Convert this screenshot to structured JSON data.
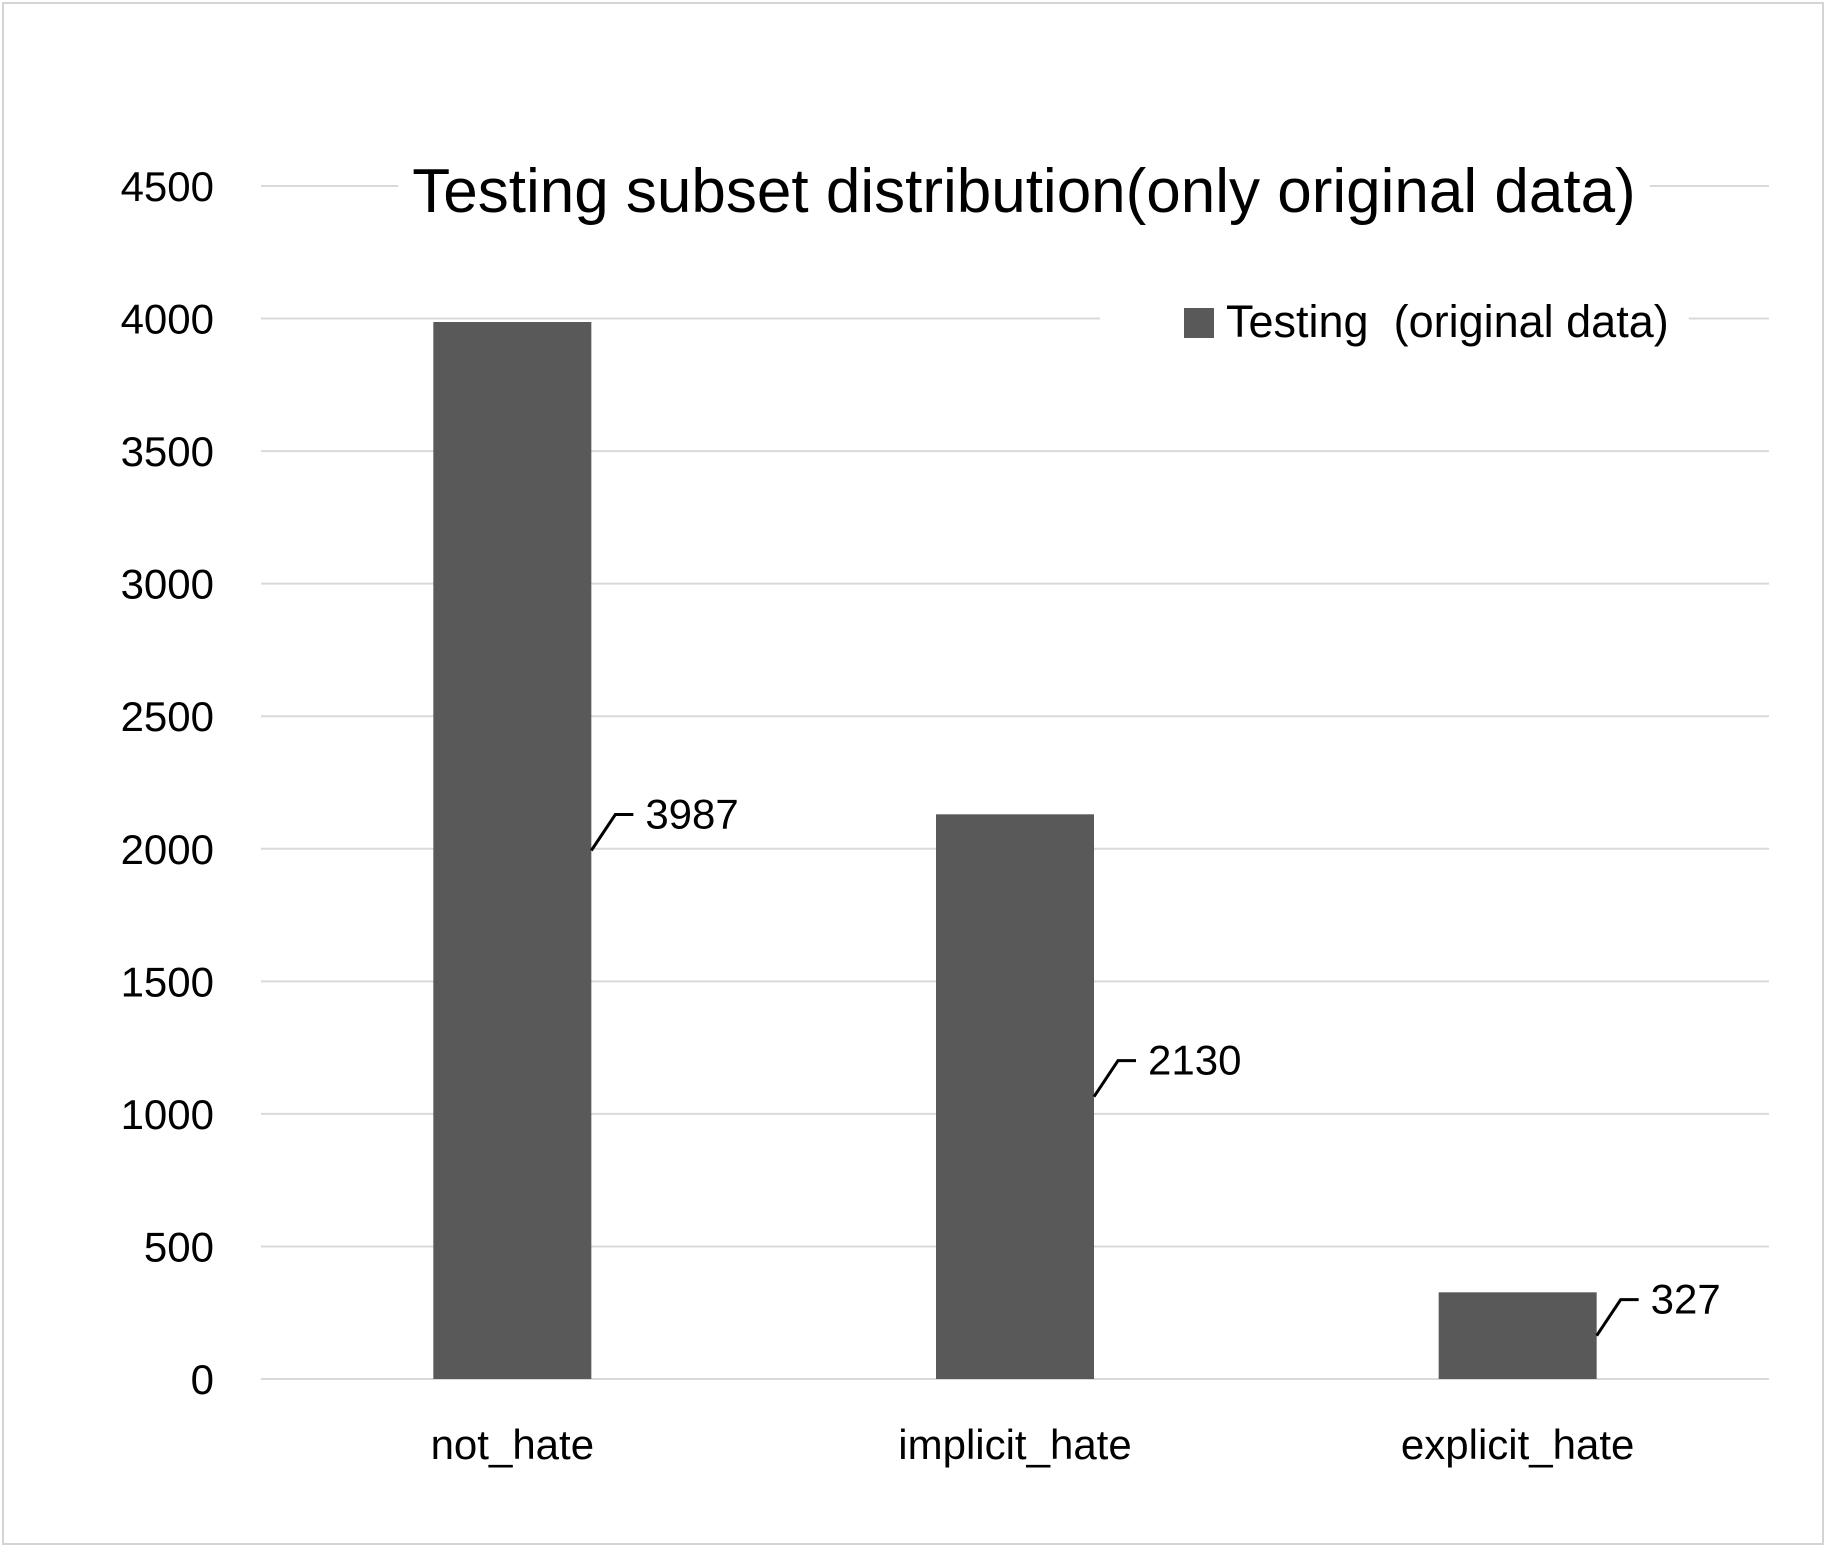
{
  "chart_data": {
    "type": "bar",
    "title": "Testing subset distribution(only original data)",
    "xlabel": "",
    "ylabel": "",
    "categories": [
      "not_hate",
      "implicit_hate",
      "explicit_hate"
    ],
    "series": [
      {
        "name": "Testing  (original data)",
        "values": [
          3987,
          2130,
          327
        ],
        "color": "#595959"
      }
    ],
    "data_labels": [
      "3987",
      "2130",
      "327"
    ],
    "ylim": [
      0,
      4500
    ],
    "yticks": [
      "0",
      "500",
      "1000",
      "1500",
      "2000",
      "2500",
      "3000",
      "3500",
      "4000",
      "4500"
    ],
    "grid": true,
    "legend_position": "top-right",
    "colors": {
      "bar": "#595959",
      "grid": "#d9d9d9",
      "text": "#000000",
      "border": "#d4d4d4"
    }
  }
}
